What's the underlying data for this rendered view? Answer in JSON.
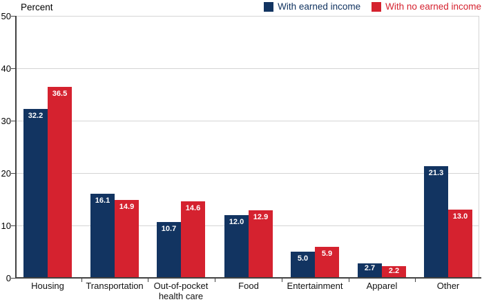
{
  "chart_data": {
    "type": "bar",
    "title": "",
    "ylabel": "Percent",
    "xlabel": "",
    "ylim": [
      0,
      50
    ],
    "yticks": [
      0,
      10,
      20,
      30,
      40,
      50
    ],
    "grid": true,
    "legend_position": "top-right",
    "value_labels": true,
    "categories": [
      "Housing",
      "Transportation",
      "Out-of-pocket health care",
      "Food",
      "Entertainment",
      "Apparel",
      "Other"
    ],
    "series": [
      {
        "name": "With earned income",
        "color": "#123461",
        "values": [
          32.2,
          16.1,
          10.7,
          12.0,
          5.0,
          2.7,
          21.3
        ]
      },
      {
        "name": "With no earned income",
        "color": "#d5222f",
        "values": [
          36.5,
          14.9,
          14.6,
          12.9,
          5.9,
          2.2,
          13.0
        ]
      }
    ]
  },
  "legend": [
    {
      "label": "With earned income",
      "color": "#123461"
    },
    {
      "label": "With no earned income",
      "color": "#d5222f"
    }
  ],
  "colors": {
    "gridline": "#d4d4d4",
    "axis": "#414141",
    "value_label_text": "#ffffff",
    "background": "#ffffff"
  }
}
